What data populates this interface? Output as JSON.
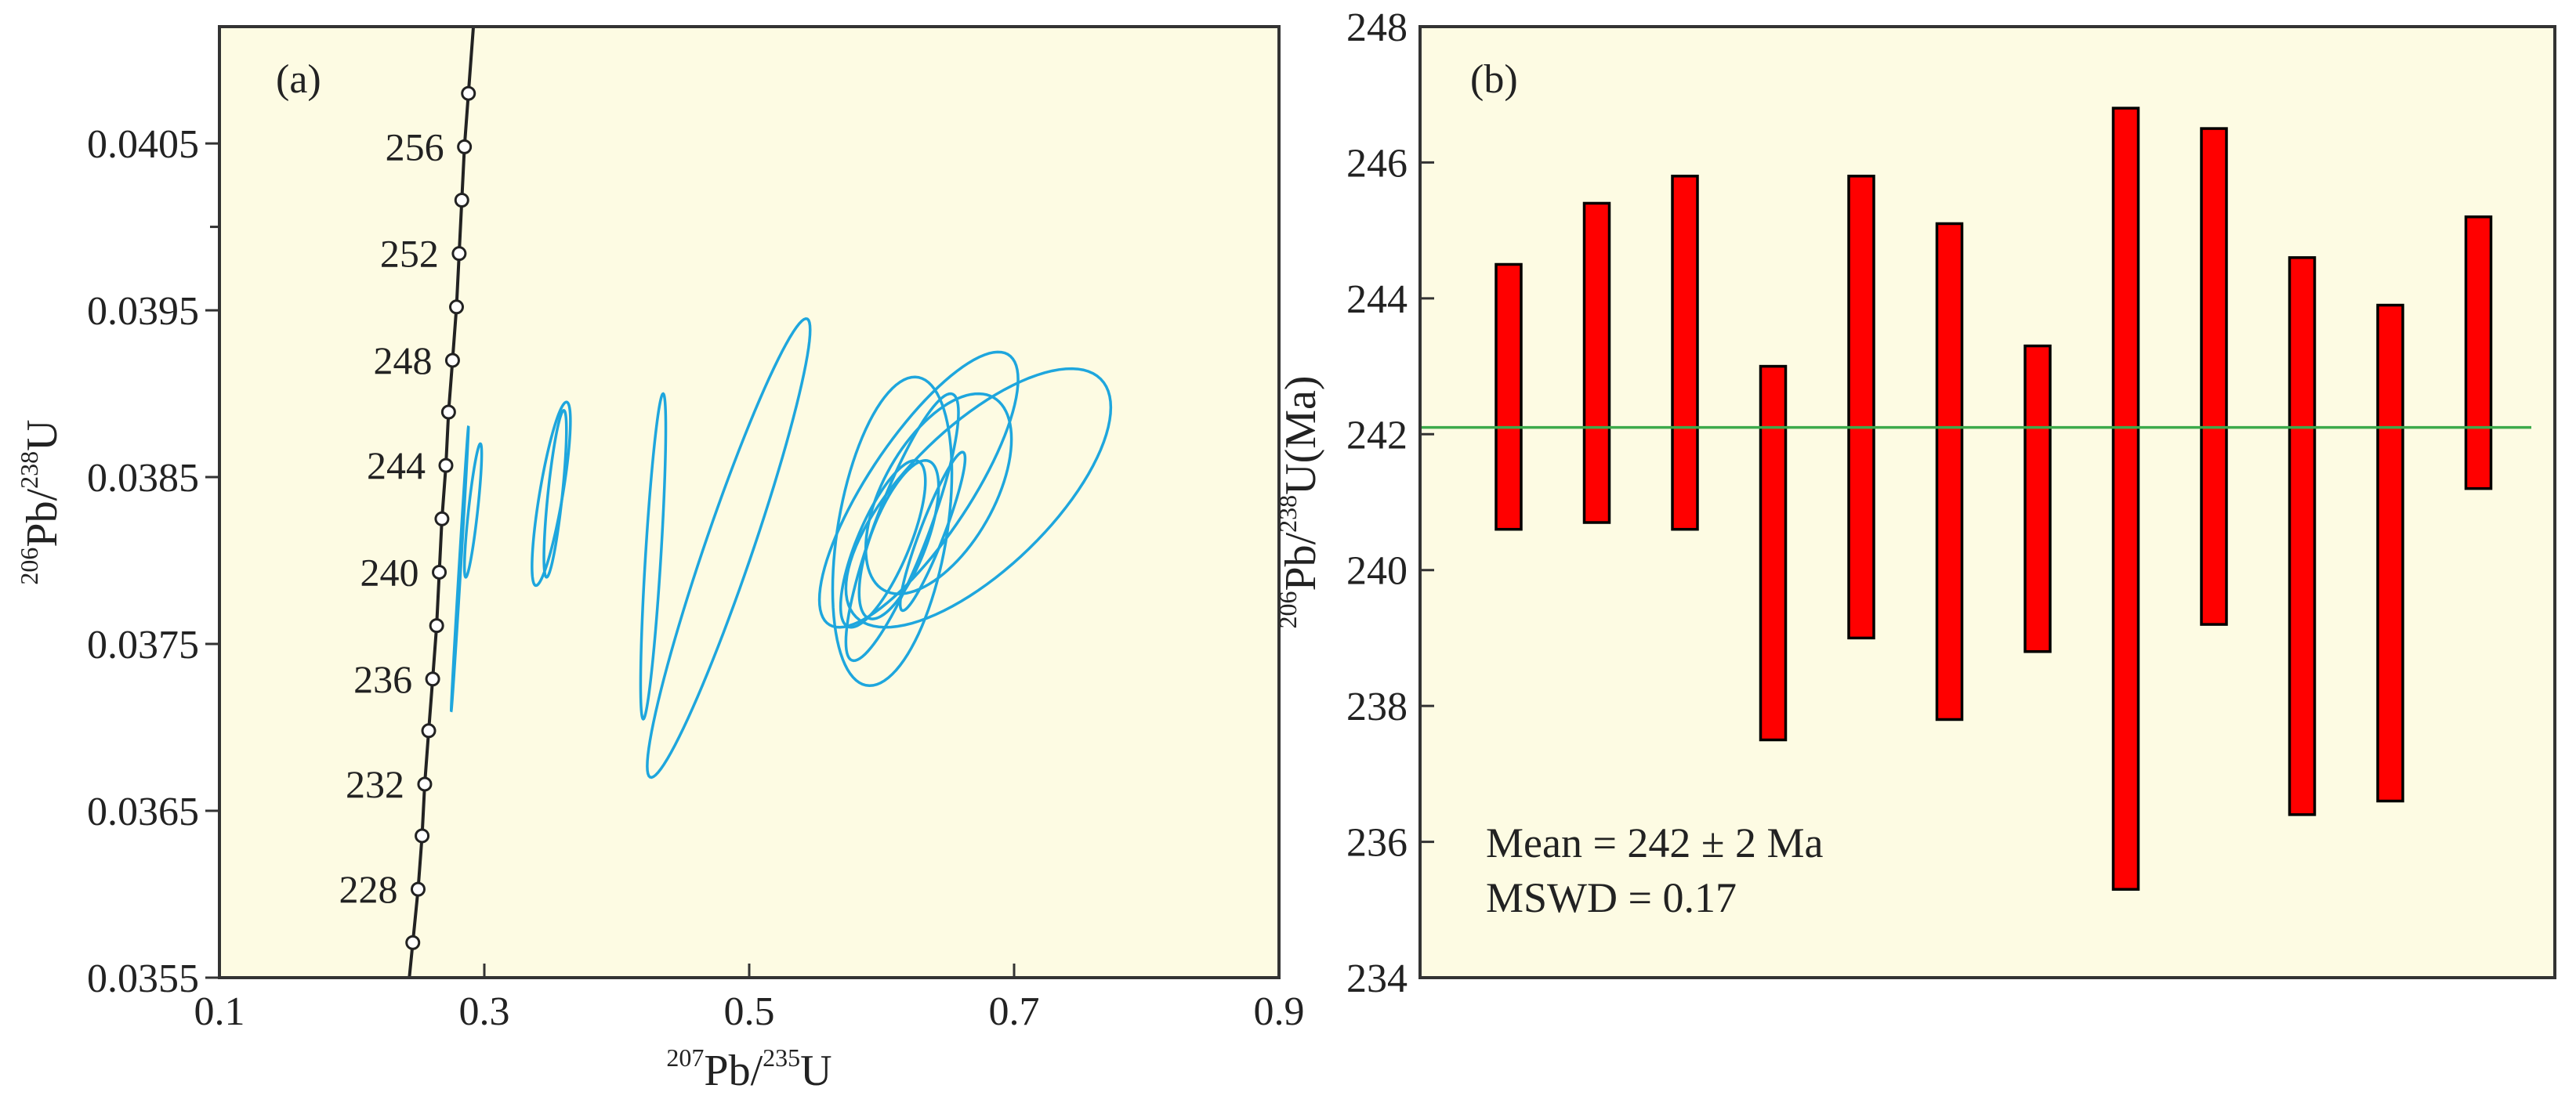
{
  "colors": {
    "plot_bg": "#fdfbe3",
    "axis": "#333333",
    "ellipse": "#1ea6dd",
    "concordia": "#222222",
    "bar_fill": "#ff0000",
    "bar_stroke": "#000000",
    "mean_line": "#3caa4b"
  },
  "chart_data": [
    {
      "type": "scatter",
      "panel_label": "(a)",
      "title": "",
      "xlabel": {
        "sup1": "207",
        "base1": "Pb/",
        "sup2": "235",
        "base2": "U"
      },
      "ylabel": {
        "sup1": "206",
        "base1": "Pb/",
        "sup2": "238",
        "base2": "U"
      },
      "xlim": [
        0.1,
        0.9
      ],
      "ylim": [
        0.0355,
        0.0412
      ],
      "xticks": [
        0.1,
        0.3,
        0.5,
        0.7,
        0.9
      ],
      "xtick_labels": [
        "0.1",
        "0.3",
        "0.5",
        "0.7",
        "0.9"
      ],
      "yticks": [
        0.0355,
        0.0365,
        0.0375,
        0.0385,
        0.0395,
        0.0405
      ],
      "ytick_labels": [
        "0.0355",
        "0.0365",
        "0.0375",
        "0.0385",
        "0.0395",
        "0.0405"
      ],
      "y_minor_ticks": [
        0.04
      ],
      "concordia": {
        "ages_ma": [
          226,
          228,
          230,
          232,
          234,
          236,
          238,
          240,
          242,
          244,
          246,
          248,
          250,
          252,
          254,
          256,
          258
        ],
        "labeled_ages": [
          228,
          232,
          236,
          240,
          244,
          248,
          252,
          256
        ],
        "points": [
          {
            "x": 0.246,
            "y": 0.03571
          },
          {
            "x": 0.25,
            "y": 0.03603
          },
          {
            "x": 0.253,
            "y": 0.03635
          },
          {
            "x": 0.255,
            "y": 0.03666
          },
          {
            "x": 0.258,
            "y": 0.03698
          },
          {
            "x": 0.261,
            "y": 0.03729
          },
          {
            "x": 0.264,
            "y": 0.03761
          },
          {
            "x": 0.266,
            "y": 0.03793
          },
          {
            "x": 0.268,
            "y": 0.03825
          },
          {
            "x": 0.271,
            "y": 0.03857
          },
          {
            "x": 0.273,
            "y": 0.03889
          },
          {
            "x": 0.276,
            "y": 0.0392
          },
          {
            "x": 0.279,
            "y": 0.03952
          },
          {
            "x": 0.281,
            "y": 0.03984
          },
          {
            "x": 0.283,
            "y": 0.04016
          },
          {
            "x": 0.285,
            "y": 0.04048
          },
          {
            "x": 0.288,
            "y": 0.0408
          }
        ]
      },
      "ellipses": [
        {
          "x_range": [
            0.275,
            0.288
          ],
          "y_range": [
            0.0371,
            0.0388
          ],
          "x_at_y_max": 0.288,
          "x_at_y_min": 0.275
        },
        {
          "x_range": [
            0.285,
            0.298
          ],
          "y_range": [
            0.0379,
            0.0387
          ],
          "x_at_y_max": 0.297,
          "x_at_y_min": 0.286
        },
        {
          "x_range": [
            0.336,
            0.365
          ],
          "y_range": [
            0.03785,
            0.03895
          ],
          "x_at_y_max": 0.362,
          "x_at_y_min": 0.339
        },
        {
          "x_range": [
            0.345,
            0.362
          ],
          "y_range": [
            0.0379,
            0.0389
          ],
          "x_at_y_max": 0.36,
          "x_at_y_min": 0.347
        },
        {
          "x_range": [
            0.418,
            0.437
          ],
          "y_range": [
            0.03705,
            0.039
          ],
          "x_at_y_max": 0.435,
          "x_at_y_min": 0.42
        },
        {
          "x_range": [
            0.423,
            0.546
          ],
          "y_range": [
            0.0367,
            0.03945
          ],
          "x_at_y_max": 0.543,
          "x_at_y_min": 0.433
        },
        {
          "x_range": [
            0.569,
            0.633
          ],
          "y_range": [
            0.0376,
            0.0386
          ],
          "x_at_y_max": 0.625,
          "x_at_y_min": 0.58
        },
        {
          "x_range": [
            0.583,
            0.643
          ],
          "y_range": [
            0.03765,
            0.0386
          ],
          "x_at_y_max": 0.633,
          "x_at_y_min": 0.591
        },
        {
          "x_range": [
            0.614,
            0.663
          ],
          "y_range": [
            0.0377,
            0.03865
          ],
          "x_at_y_max": 0.661,
          "x_at_y_min": 0.618
        },
        {
          "x_range": [
            0.573,
            0.658
          ],
          "y_range": [
            0.0374,
            0.039
          ],
          "x_at_y_max": 0.652,
          "x_at_y_min": 0.588
        },
        {
          "x_range": [
            0.563,
            0.653
          ],
          "y_range": [
            0.03725,
            0.0391
          ],
          "x_at_y_max": 0.625,
          "x_at_y_min": 0.583
        },
        {
          "x_range": [
            0.553,
            0.703
          ],
          "y_range": [
            0.0376,
            0.03925
          ],
          "x_at_y_max": 0.688,
          "x_at_y_min": 0.598
        },
        {
          "x_range": [
            0.573,
            0.773
          ],
          "y_range": [
            0.0376,
            0.03915
          ],
          "x_at_y_max": 0.743,
          "x_at_y_min": 0.603
        },
        {
          "x_range": [
            0.588,
            0.698
          ],
          "y_range": [
            0.0378,
            0.039
          ],
          "x_at_y_max": 0.673,
          "x_at_y_min": 0.603
        }
      ]
    },
    {
      "type": "bar",
      "subtype": "error_bar_ranges",
      "panel_label": "(b)",
      "title": "",
      "xlabel": "",
      "ylabel": {
        "sup1": "206",
        "base1": "Pb/",
        "sup2": "238",
        "base2": "U(Ma)"
      },
      "ylim": [
        234,
        248
      ],
      "yticks": [
        234,
        236,
        238,
        240,
        242,
        244,
        246,
        248
      ],
      "ytick_labels": [
        "234",
        "236",
        "238",
        "240",
        "242",
        "244",
        "246",
        "248"
      ],
      "series": [
        {
          "name": "206Pb/238U age",
          "ranges": [
            [
              240.6,
              244.5
            ],
            [
              240.7,
              245.4
            ],
            [
              240.6,
              245.8
            ],
            [
              237.5,
              243.0
            ],
            [
              239.0,
              245.8
            ],
            [
              237.8,
              245.1
            ],
            [
              238.8,
              243.3
            ],
            [
              235.3,
              246.8
            ],
            [
              239.2,
              246.5
            ],
            [
              236.4,
              244.6
            ],
            [
              236.6,
              243.9
            ],
            [
              241.2,
              245.2
            ]
          ]
        }
      ],
      "mean": 242.1,
      "annotations": [
        "Mean = 242 ± 2 Ma",
        "MSWD = 0.17"
      ]
    }
  ]
}
